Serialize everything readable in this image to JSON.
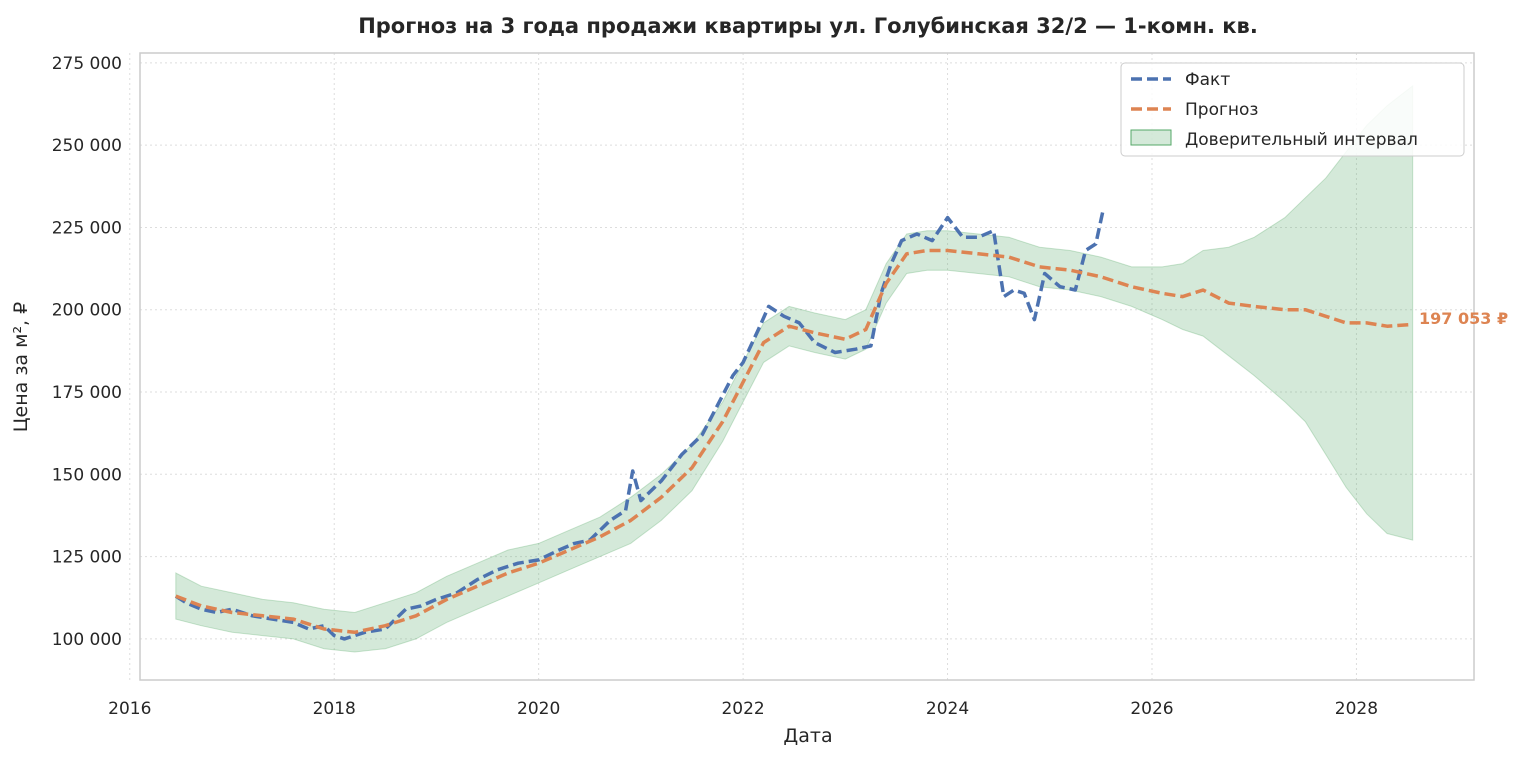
{
  "chart_data": {
    "type": "line",
    "title": "Прогноз на 3 года продажи квартиры  ул. Голубинская 32/2 — 1-комн. кв.",
    "xlabel": "Дата",
    "ylabel": "Цена за м², ₽",
    "xlim": [
      2016.1,
      2029.15
    ],
    "ylim": [
      87500,
      278000
    ],
    "x_ticks": [
      2016,
      2018,
      2020,
      2022,
      2024,
      2026,
      2028
    ],
    "x_tick_labels": [
      "2016",
      "2018",
      "2020",
      "2022",
      "2024",
      "2026",
      "2028"
    ],
    "y_ticks": [
      100000,
      125000,
      150000,
      175000,
      200000,
      225000,
      250000,
      275000
    ],
    "y_tick_labels": [
      "100 000",
      "125 000",
      "150 000",
      "175 000",
      "200 000",
      "225 000",
      "250 000",
      "275 000"
    ],
    "grid": true,
    "legend_position": "top-right",
    "colors": {
      "fact": "#4c72b0",
      "forecast": "#dd8452",
      "interval": "#55a868",
      "frame": "#cccccc",
      "text": "#262626"
    },
    "series": [
      {
        "name": "Факт",
        "style": "dashed",
        "x": [
          2016.45,
          2016.55,
          2016.7,
          2016.85,
          2017.0,
          2017.2,
          2017.4,
          2017.6,
          2017.75,
          2017.9,
          2018.0,
          2018.1,
          2018.3,
          2018.5,
          2018.7,
          2018.85,
          2019.0,
          2019.2,
          2019.4,
          2019.6,
          2019.8,
          2020.0,
          2020.2,
          2020.35,
          2020.5,
          2020.7,
          2020.85,
          2020.92,
          2021.0,
          2021.2,
          2021.4,
          2021.6,
          2021.8,
          2021.9,
          2022.0,
          2022.15,
          2022.25,
          2022.4,
          2022.55,
          2022.7,
          2022.9,
          2023.1,
          2023.25,
          2023.35,
          2023.45,
          2023.55,
          2023.7,
          2023.85,
          2024.0,
          2024.15,
          2024.3,
          2024.45,
          2024.55,
          2024.65,
          2024.75,
          2024.85,
          2024.95,
          2025.1,
          2025.25,
          2025.35,
          2025.45,
          2025.52
        ],
        "values": [
          113000,
          111000,
          109000,
          108000,
          109000,
          107000,
          106000,
          105000,
          103000,
          104000,
          101000,
          100000,
          102000,
          103000,
          109000,
          110000,
          112000,
          114000,
          118000,
          121000,
          123000,
          124000,
          127000,
          129000,
          130000,
          136000,
          139000,
          151000,
          142000,
          148000,
          156000,
          162000,
          174000,
          180000,
          184000,
          194000,
          201000,
          198000,
          196000,
          190000,
          187000,
          188000,
          189000,
          205000,
          214000,
          221000,
          223000,
          221000,
          228000,
          222000,
          222000,
          224000,
          204000,
          206000,
          205000,
          197000,
          211000,
          207000,
          206000,
          218000,
          220000,
          230000
        ]
      },
      {
        "name": "Прогноз",
        "style": "dashed",
        "x": [
          2016.45,
          2016.7,
          2017.0,
          2017.3,
          2017.6,
          2017.9,
          2018.2,
          2018.5,
          2018.8,
          2019.1,
          2019.4,
          2019.7,
          2020.0,
          2020.3,
          2020.6,
          2020.9,
          2021.2,
          2021.5,
          2021.8,
          2022.0,
          2022.2,
          2022.45,
          2022.7,
          2023.0,
          2023.2,
          2023.4,
          2023.6,
          2023.8,
          2024.0,
          2024.3,
          2024.6,
          2024.9,
          2025.2,
          2025.5,
          2025.8,
          2026.1,
          2026.3,
          2026.5,
          2026.75,
          2027.0,
          2027.3,
          2027.5,
          2027.7,
          2027.9,
          2028.1,
          2028.3,
          2028.55
        ],
        "values": [
          113000,
          110000,
          108000,
          107000,
          106000,
          103000,
          102000,
          104000,
          107000,
          112000,
          116000,
          120000,
          123000,
          127000,
          131000,
          136000,
          143000,
          152000,
          166000,
          178000,
          190000,
          195000,
          193000,
          191000,
          194000,
          208000,
          217000,
          218000,
          218000,
          217000,
          216000,
          213000,
          212000,
          210000,
          207000,
          205000,
          204000,
          206000,
          202000,
          201000,
          200000,
          200000,
          198000,
          196000,
          196000,
          195000,
          195500
        ]
      }
    ],
    "interval": {
      "name": "Доверительный интервал",
      "x": [
        2016.45,
        2016.7,
        2017.0,
        2017.3,
        2017.6,
        2017.9,
        2018.2,
        2018.5,
        2018.8,
        2019.1,
        2019.4,
        2019.7,
        2020.0,
        2020.3,
        2020.6,
        2020.9,
        2021.2,
        2021.5,
        2021.8,
        2022.0,
        2022.2,
        2022.45,
        2022.7,
        2023.0,
        2023.2,
        2023.4,
        2023.6,
        2023.8,
        2024.0,
        2024.3,
        2024.6,
        2024.9,
        2025.2,
        2025.5,
        2025.8,
        2026.1,
        2026.3,
        2026.5,
        2026.75,
        2027.0,
        2027.3,
        2027.5,
        2027.7,
        2027.9,
        2028.1,
        2028.3,
        2028.55
      ],
      "upper": [
        120000,
        116000,
        114000,
        112000,
        111000,
        109000,
        108000,
        111000,
        114000,
        119000,
        123000,
        127000,
        129000,
        133000,
        137000,
        143000,
        150000,
        159000,
        172000,
        184000,
        196000,
        201000,
        199000,
        197000,
        200000,
        214000,
        223000,
        224000,
        224000,
        223000,
        222000,
        219000,
        218000,
        216000,
        213000,
        213000,
        214000,
        218000,
        219000,
        222000,
        228000,
        234000,
        240000,
        248000,
        256000,
        262000,
        268000
      ],
      "lower": [
        106000,
        104000,
        102000,
        101000,
        100000,
        97000,
        96000,
        97000,
        100000,
        105000,
        109000,
        113000,
        117000,
        121000,
        125000,
        129000,
        136000,
        145000,
        160000,
        172000,
        184000,
        189000,
        187000,
        185000,
        188000,
        202000,
        211000,
        212000,
        212000,
        211000,
        210000,
        207000,
        206000,
        204000,
        201000,
        197000,
        194000,
        192000,
        186000,
        180000,
        172000,
        166000,
        156000,
        146000,
        138000,
        132000,
        130000
      ]
    },
    "end_label": "197 053 ₽"
  }
}
